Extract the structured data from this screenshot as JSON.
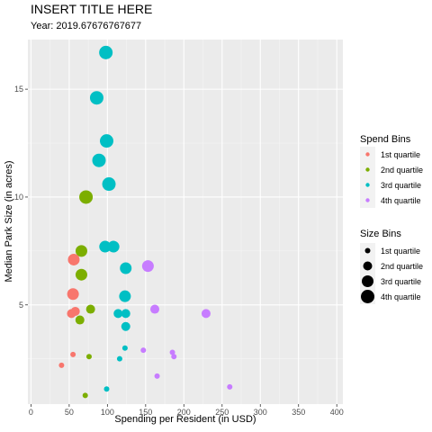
{
  "chart_data": {
    "type": "scatter",
    "title": "INSERT TITLE HERE",
    "subtitle": "Year: 2019.67676767677",
    "xlabel": "Spending per Resident (in USD)",
    "ylabel": "Median Park Size (in acres)",
    "xlim": [
      -4,
      408
    ],
    "ylim": [
      0.4,
      17.3
    ],
    "x_ticks": [
      0,
      50,
      100,
      150,
      200,
      250,
      300,
      350,
      400
    ],
    "y_ticks": [
      5,
      10,
      15
    ],
    "grid": true,
    "background": "#ebebeb",
    "legend_placement": "right",
    "legends": [
      {
        "title": "Spend Bins",
        "kind": "color",
        "entries": [
          {
            "label": "1st quartile",
            "color": "#f8766d"
          },
          {
            "label": "2nd quartile",
            "color": "#7cae00"
          },
          {
            "label": "3rd quartile",
            "color": "#00bfc4"
          },
          {
            "label": "4th quartile",
            "color": "#c77cff"
          }
        ]
      },
      {
        "title": "Size Bins",
        "kind": "size",
        "entries": [
          {
            "label": "1st quartile",
            "size": 1
          },
          {
            "label": "2nd quartile",
            "size": 2
          },
          {
            "label": "3rd quartile",
            "size": 3
          },
          {
            "label": "4th quartile",
            "size": 4
          }
        ]
      }
    ],
    "points": [
      {
        "x": 98,
        "y": 16.7,
        "spend_bin": 3,
        "size_bin": 4
      },
      {
        "x": 86,
        "y": 14.6,
        "spend_bin": 3,
        "size_bin": 4
      },
      {
        "x": 99,
        "y": 12.6,
        "spend_bin": 3,
        "size_bin": 4
      },
      {
        "x": 89,
        "y": 11.7,
        "spend_bin": 3,
        "size_bin": 4
      },
      {
        "x": 102,
        "y": 10.6,
        "spend_bin": 3,
        "size_bin": 4
      },
      {
        "x": 72,
        "y": 10.0,
        "spend_bin": 2,
        "size_bin": 4
      },
      {
        "x": 97,
        "y": 7.7,
        "spend_bin": 3,
        "size_bin": 3
      },
      {
        "x": 108,
        "y": 7.7,
        "spend_bin": 3,
        "size_bin": 3
      },
      {
        "x": 66,
        "y": 7.5,
        "spend_bin": 2,
        "size_bin": 3
      },
      {
        "x": 56,
        "y": 7.1,
        "spend_bin": 1,
        "size_bin": 3
      },
      {
        "x": 153,
        "y": 6.8,
        "spend_bin": 4,
        "size_bin": 3
      },
      {
        "x": 124,
        "y": 6.7,
        "spend_bin": 3,
        "size_bin": 3
      },
      {
        "x": 66,
        "y": 6.4,
        "spend_bin": 2,
        "size_bin": 3
      },
      {
        "x": 55,
        "y": 5.5,
        "spend_bin": 1,
        "size_bin": 3
      },
      {
        "x": 123,
        "y": 5.4,
        "spend_bin": 3,
        "size_bin": 3
      },
      {
        "x": 162,
        "y": 4.8,
        "spend_bin": 4,
        "size_bin": 2
      },
      {
        "x": 78,
        "y": 4.8,
        "spend_bin": 2,
        "size_bin": 2
      },
      {
        "x": 58,
        "y": 4.7,
        "spend_bin": 1,
        "size_bin": 2
      },
      {
        "x": 53,
        "y": 4.6,
        "spend_bin": 1,
        "size_bin": 2
      },
      {
        "x": 114,
        "y": 4.6,
        "spend_bin": 3,
        "size_bin": 2
      },
      {
        "x": 124,
        "y": 4.6,
        "spend_bin": 3,
        "size_bin": 2
      },
      {
        "x": 229,
        "y": 4.6,
        "spend_bin": 4,
        "size_bin": 2
      },
      {
        "x": 64,
        "y": 4.3,
        "spend_bin": 2,
        "size_bin": 2
      },
      {
        "x": 124,
        "y": 4.0,
        "spend_bin": 3,
        "size_bin": 2
      },
      {
        "x": 123,
        "y": 3.0,
        "spend_bin": 3,
        "size_bin": 1
      },
      {
        "x": 147,
        "y": 2.9,
        "spend_bin": 4,
        "size_bin": 1
      },
      {
        "x": 185,
        "y": 2.8,
        "spend_bin": 4,
        "size_bin": 1
      },
      {
        "x": 55,
        "y": 2.7,
        "spend_bin": 1,
        "size_bin": 1
      },
      {
        "x": 76,
        "y": 2.6,
        "spend_bin": 2,
        "size_bin": 1
      },
      {
        "x": 187,
        "y": 2.6,
        "spend_bin": 4,
        "size_bin": 1
      },
      {
        "x": 116,
        "y": 2.5,
        "spend_bin": 3,
        "size_bin": 1
      },
      {
        "x": 40,
        "y": 2.2,
        "spend_bin": 1,
        "size_bin": 1
      },
      {
        "x": 165,
        "y": 1.7,
        "spend_bin": 4,
        "size_bin": 1
      },
      {
        "x": 260,
        "y": 1.2,
        "spend_bin": 4,
        "size_bin": 1
      },
      {
        "x": 99,
        "y": 1.1,
        "spend_bin": 3,
        "size_bin": 1
      },
      {
        "x": 71,
        "y": 0.8,
        "spend_bin": 2,
        "size_bin": 1
      }
    ]
  }
}
